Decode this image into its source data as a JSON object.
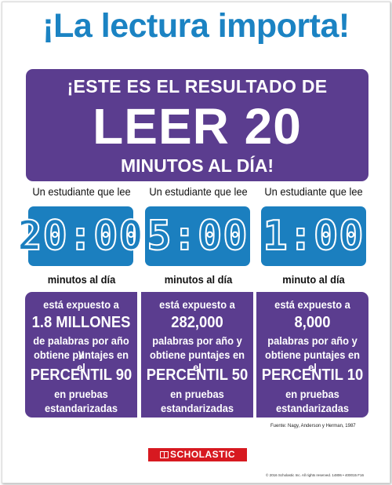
{
  "title": "¡La lectura importa!",
  "banner": {
    "line1": "¡ESTE ES EL RESULTADO DE",
    "line2": "LEER 20",
    "line3": "MINUTOS AL DÍA!"
  },
  "colors": {
    "title_blue": "#1b83c3",
    "purple": "#5b3d8f",
    "clock_blue": "#1b7fbf",
    "scholastic_red": "#d71920"
  },
  "columns": [
    {
      "lead": "Un estudiante que lee",
      "clock": "20:00",
      "unit": "minutos al día",
      "exposed": "está expuesto a",
      "words": "1.8 MILLONES",
      "line3": "de palabras por año y",
      "line4": "obtiene puntajes en el",
      "percentile": "PERCENTIL 90",
      "line6": "en pruebas",
      "line7": "estandarizadas"
    },
    {
      "lead": "Un estudiante que lee",
      "clock": "5:00",
      "unit": "minutos al día",
      "exposed": "está expuesto a",
      "words": "282,000",
      "line3": "palabras por año y",
      "line4": "obtiene puntajes en el",
      "percentile": "PERCENTIL 50",
      "line6": "en pruebas",
      "line7": "estandarizadas"
    },
    {
      "lead": "Un estudiante que lee",
      "clock": "1:00",
      "unit": "minuto al día",
      "exposed": "está expuesto a",
      "words": "8,000",
      "line3": "palabras por año y",
      "line4": "obtiene puntajes en el",
      "percentile": "PERCENTIL 10",
      "line6": "en pruebas",
      "line7": "estandarizadas"
    }
  ],
  "source": "Fuente: Nagy, Anderson y Herman, 1987",
  "logo": "SCHOLASTIC",
  "copyright": "© 2016 Scholastic Inc. All rights reserved. 14806 • 400015 F16"
}
